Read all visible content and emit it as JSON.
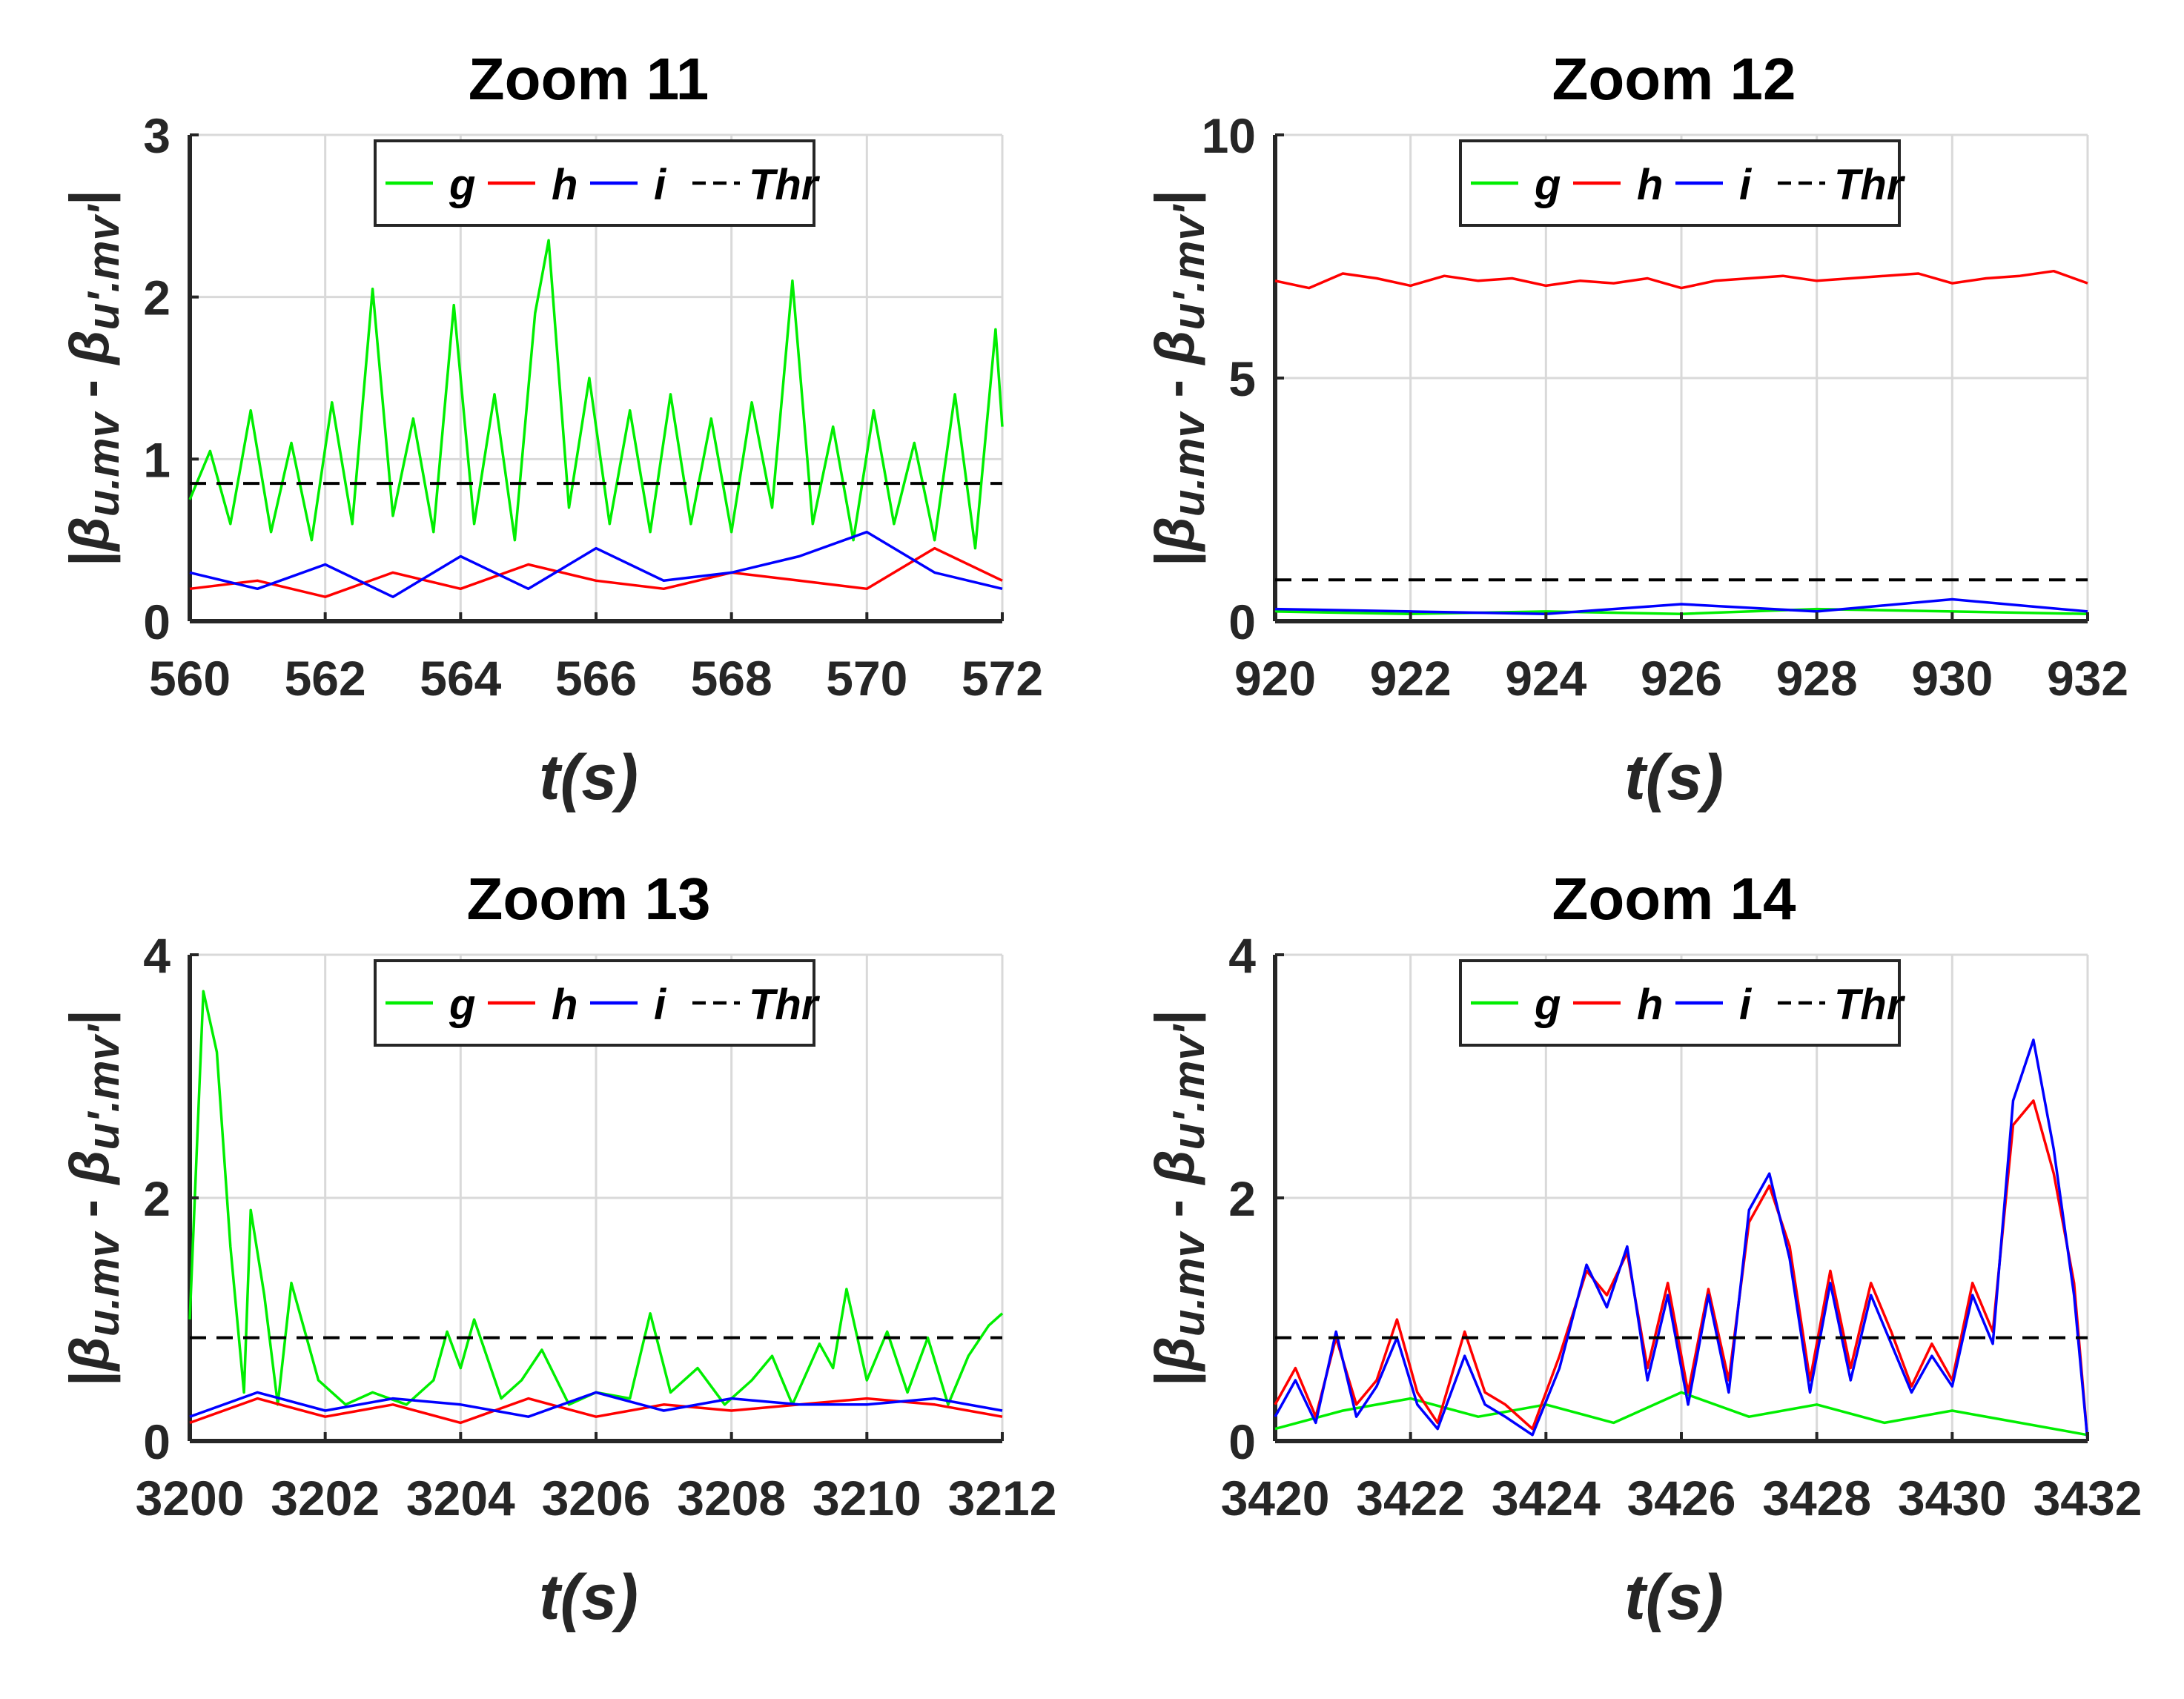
{
  "figure": {
    "ylabel": "|β",
    "ylabel_parts": [
      "|",
      "β",
      "u.mv",
      " - ",
      "β",
      "u'.mv'",
      "|"
    ],
    "colors": {
      "g": "#00ee00",
      "h": "#ff0000",
      "i": "#0000ff",
      "Thr": "#000000",
      "grid": "#d9d9d9"
    }
  },
  "chart_data": [
    {
      "type": "line",
      "title": "Zoom 11",
      "xlabel": "t(s)",
      "ylabel": "|β u.mv - β u'.mv'|",
      "xlim": [
        560,
        572
      ],
      "ylim": [
        0,
        3
      ],
      "xticks": [
        560,
        562,
        564,
        566,
        568,
        570,
        572
      ],
      "yticks": [
        0,
        1,
        2,
        3
      ],
      "legend": {
        "location": "top",
        "entries": [
          "g",
          "h",
          "i",
          "Thr"
        ]
      },
      "threshold": 0.85,
      "series": [
        {
          "name": "g",
          "color": "#00ee00",
          "x": [
            560.0,
            560.3,
            560.6,
            560.9,
            561.2,
            561.5,
            561.8,
            562.1,
            562.4,
            562.7,
            563.0,
            563.3,
            563.6,
            563.9,
            564.2,
            564.5,
            564.8,
            565.1,
            565.3,
            565.6,
            565.9,
            566.2,
            566.5,
            566.8,
            567.1,
            567.4,
            567.7,
            568.0,
            568.3,
            568.6,
            568.9,
            569.2,
            569.5,
            569.8,
            570.1,
            570.4,
            570.7,
            571.0,
            571.3,
            571.6,
            571.9,
            572.0
          ],
          "y": [
            0.75,
            1.05,
            0.6,
            1.3,
            0.55,
            1.1,
            0.5,
            1.35,
            0.6,
            2.05,
            0.65,
            1.25,
            0.55,
            1.95,
            0.6,
            1.4,
            0.5,
            1.9,
            2.35,
            0.7,
            1.5,
            0.6,
            1.3,
            0.55,
            1.4,
            0.6,
            1.25,
            0.55,
            1.35,
            0.7,
            2.1,
            0.6,
            1.2,
            0.5,
            1.3,
            0.6,
            1.1,
            0.5,
            1.4,
            0.45,
            1.8,
            1.2
          ]
        },
        {
          "name": "h",
          "color": "#ff0000",
          "x": [
            560.0,
            561.0,
            562.0,
            563.0,
            564.0,
            565.0,
            566.0,
            567.0,
            568.0,
            569.0,
            570.0,
            571.0,
            572.0
          ],
          "y": [
            0.2,
            0.25,
            0.15,
            0.3,
            0.2,
            0.35,
            0.25,
            0.2,
            0.3,
            0.25,
            0.2,
            0.45,
            0.25
          ]
        },
        {
          "name": "i",
          "color": "#0000ff",
          "x": [
            560.0,
            561.0,
            562.0,
            563.0,
            564.0,
            565.0,
            566.0,
            567.0,
            568.0,
            569.0,
            570.0,
            571.0,
            572.0
          ],
          "y": [
            0.3,
            0.2,
            0.35,
            0.15,
            0.4,
            0.2,
            0.45,
            0.25,
            0.3,
            0.4,
            0.55,
            0.3,
            0.2
          ]
        },
        {
          "name": "Thr",
          "color": "#000000",
          "style": "dashed",
          "x": [
            560,
            572
          ],
          "y": [
            0.85,
            0.85
          ]
        }
      ]
    },
    {
      "type": "line",
      "title": "Zoom 12",
      "xlabel": "t(s)",
      "ylabel": "|β u.mv - β u'.mv'|",
      "xlim": [
        920,
        932
      ],
      "ylim": [
        0,
        10
      ],
      "xticks": [
        920,
        922,
        924,
        926,
        928,
        930,
        932
      ],
      "yticks": [
        0,
        5,
        10
      ],
      "legend": {
        "location": "top",
        "entries": [
          "g",
          "h",
          "i",
          "Thr"
        ]
      },
      "threshold": 0.85,
      "series": [
        {
          "name": "g",
          "color": "#00ee00",
          "x": [
            920,
            922,
            924,
            926,
            928,
            930,
            932
          ],
          "y": [
            0.2,
            0.15,
            0.2,
            0.15,
            0.25,
            0.2,
            0.15
          ]
        },
        {
          "name": "h",
          "color": "#ff0000",
          "x": [
            920.0,
            920.5,
            921.0,
            921.5,
            922.0,
            922.5,
            923.0,
            923.5,
            924.0,
            924.5,
            925.0,
            925.5,
            926.0,
            926.5,
            927.0,
            927.5,
            928.0,
            928.5,
            929.0,
            929.5,
            930.0,
            930.5,
            931.0,
            931.5,
            932.0
          ],
          "y": [
            7.0,
            6.85,
            7.15,
            7.05,
            6.9,
            7.1,
            7.0,
            7.05,
            6.9,
            7.0,
            6.95,
            7.05,
            6.85,
            7.0,
            7.05,
            7.1,
            7.0,
            7.05,
            7.1,
            7.15,
            6.95,
            7.05,
            7.1,
            7.2,
            6.95
          ]
        },
        {
          "name": "i",
          "color": "#0000ff",
          "x": [
            920,
            922,
            924,
            926,
            928,
            930,
            932
          ],
          "y": [
            0.25,
            0.2,
            0.15,
            0.35,
            0.2,
            0.45,
            0.2
          ]
        },
        {
          "name": "Thr",
          "color": "#000000",
          "style": "dashed",
          "x": [
            920,
            932
          ],
          "y": [
            0.85,
            0.85
          ]
        }
      ]
    },
    {
      "type": "line",
      "title": "Zoom 13",
      "xlabel": "t(s)",
      "ylabel": "|β u.mv - β u'.mv'|",
      "xlim": [
        3200,
        3212
      ],
      "ylim": [
        0,
        4
      ],
      "xticks": [
        3200,
        3202,
        3204,
        3206,
        3208,
        3210,
        3212
      ],
      "yticks": [
        0,
        2,
        4
      ],
      "legend": {
        "location": "top",
        "entries": [
          "g",
          "h",
          "i",
          "Thr"
        ]
      },
      "threshold": 0.85,
      "series": [
        {
          "name": "g",
          "color": "#00ee00",
          "x": [
            3200.0,
            3200.2,
            3200.4,
            3200.6,
            3200.8,
            3200.9,
            3201.1,
            3201.3,
            3201.5,
            3201.7,
            3201.9,
            3202.3,
            3202.7,
            3203.2,
            3203.6,
            3203.8,
            3204.0,
            3204.2,
            3204.6,
            3204.9,
            3205.2,
            3205.6,
            3206.0,
            3206.5,
            3206.8,
            3207.1,
            3207.5,
            3207.9,
            3208.3,
            3208.6,
            3208.9,
            3209.3,
            3209.5,
            3209.7,
            3210.0,
            3210.3,
            3210.6,
            3210.9,
            3211.2,
            3211.5,
            3211.8,
            3212.0
          ],
          "y": [
            1.0,
            3.7,
            3.2,
            1.6,
            0.4,
            1.9,
            1.2,
            0.3,
            1.3,
            0.9,
            0.5,
            0.3,
            0.4,
            0.3,
            0.5,
            0.9,
            0.6,
            1.0,
            0.35,
            0.5,
            0.75,
            0.3,
            0.4,
            0.35,
            1.05,
            0.4,
            0.6,
            0.3,
            0.5,
            0.7,
            0.3,
            0.8,
            0.6,
            1.25,
            0.5,
            0.9,
            0.4,
            0.85,
            0.3,
            0.7,
            0.95,
            1.05
          ]
        },
        {
          "name": "h",
          "color": "#ff0000",
          "x": [
            3200,
            3201,
            3202,
            3203,
            3204,
            3205,
            3206,
            3207,
            3208,
            3209,
            3210,
            3211,
            3212
          ],
          "y": [
            0.15,
            0.35,
            0.2,
            0.3,
            0.15,
            0.35,
            0.2,
            0.3,
            0.25,
            0.3,
            0.35,
            0.3,
            0.2
          ]
        },
        {
          "name": "i",
          "color": "#0000ff",
          "x": [
            3200,
            3201,
            3202,
            3203,
            3204,
            3205,
            3206,
            3207,
            3208,
            3209,
            3210,
            3211,
            3212
          ],
          "y": [
            0.2,
            0.4,
            0.25,
            0.35,
            0.3,
            0.2,
            0.4,
            0.25,
            0.35,
            0.3,
            0.3,
            0.35,
            0.25
          ]
        },
        {
          "name": "Thr",
          "color": "#000000",
          "style": "dashed",
          "x": [
            3200,
            3212
          ],
          "y": [
            0.85,
            0.85
          ]
        }
      ]
    },
    {
      "type": "line",
      "title": "Zoom 14",
      "xlabel": "t(s)",
      "ylabel": "|β u.mv - β u'.mv'|",
      "xlim": [
        3420,
        3432
      ],
      "ylim": [
        0,
        4
      ],
      "xticks": [
        3420,
        3422,
        3424,
        3426,
        3428,
        3430,
        3432
      ],
      "yticks": [
        0,
        2,
        4
      ],
      "legend": {
        "location": "top",
        "entries": [
          "g",
          "h",
          "i",
          "Thr"
        ]
      },
      "threshold": 0.85,
      "series": [
        {
          "name": "g",
          "color": "#00ee00",
          "x": [
            3420,
            3421,
            3422,
            3423,
            3424,
            3425,
            3426,
            3427,
            3428,
            3429,
            3430,
            3431,
            3432
          ],
          "y": [
            0.1,
            0.25,
            0.35,
            0.2,
            0.3,
            0.15,
            0.4,
            0.2,
            0.3,
            0.15,
            0.25,
            0.15,
            0.05
          ]
        },
        {
          "name": "h",
          "color": "#ff0000",
          "x": [
            3420.0,
            3420.3,
            3420.6,
            3420.9,
            3421.2,
            3421.5,
            3421.8,
            3422.1,
            3422.4,
            3422.8,
            3423.1,
            3423.4,
            3423.8,
            3424.2,
            3424.6,
            3424.9,
            3425.2,
            3425.5,
            3425.8,
            3426.1,
            3426.4,
            3426.7,
            3427.0,
            3427.3,
            3427.6,
            3427.9,
            3428.2,
            3428.5,
            3428.8,
            3429.1,
            3429.4,
            3429.7,
            3430.0,
            3430.3,
            3430.6,
            3430.9,
            3431.2,
            3431.5,
            3431.8,
            3432.0
          ],
          "y": [
            0.3,
            0.6,
            0.2,
            0.85,
            0.3,
            0.5,
            1.0,
            0.4,
            0.15,
            0.9,
            0.4,
            0.3,
            0.1,
            0.7,
            1.4,
            1.2,
            1.55,
            0.6,
            1.3,
            0.4,
            1.25,
            0.5,
            1.8,
            2.1,
            1.6,
            0.5,
            1.4,
            0.6,
            1.3,
            0.9,
            0.45,
            0.8,
            0.5,
            1.3,
            0.9,
            2.6,
            2.8,
            2.2,
            1.3,
            0.0
          ]
        },
        {
          "name": "i",
          "color": "#0000ff",
          "x": [
            3420.0,
            3420.3,
            3420.6,
            3420.9,
            3421.2,
            3421.5,
            3421.8,
            3422.1,
            3422.4,
            3422.8,
            3423.1,
            3423.4,
            3423.8,
            3424.2,
            3424.6,
            3424.9,
            3425.2,
            3425.5,
            3425.8,
            3426.1,
            3426.4,
            3426.7,
            3427.0,
            3427.3,
            3427.6,
            3427.9,
            3428.2,
            3428.5,
            3428.8,
            3429.1,
            3429.4,
            3429.7,
            3430.0,
            3430.3,
            3430.6,
            3430.9,
            3431.2,
            3431.5,
            3431.8,
            3432.0
          ],
          "y": [
            0.2,
            0.5,
            0.15,
            0.9,
            0.2,
            0.45,
            0.85,
            0.3,
            0.1,
            0.7,
            0.3,
            0.2,
            0.05,
            0.6,
            1.45,
            1.1,
            1.6,
            0.5,
            1.2,
            0.3,
            1.2,
            0.4,
            1.9,
            2.2,
            1.5,
            0.4,
            1.3,
            0.5,
            1.2,
            0.8,
            0.4,
            0.7,
            0.45,
            1.2,
            0.8,
            2.8,
            3.3,
            2.4,
            1.2,
            0.0
          ]
        },
        {
          "name": "Thr",
          "color": "#000000",
          "style": "dashed",
          "x": [
            3420,
            3432
          ],
          "y": [
            0.85,
            0.85
          ]
        }
      ]
    }
  ]
}
